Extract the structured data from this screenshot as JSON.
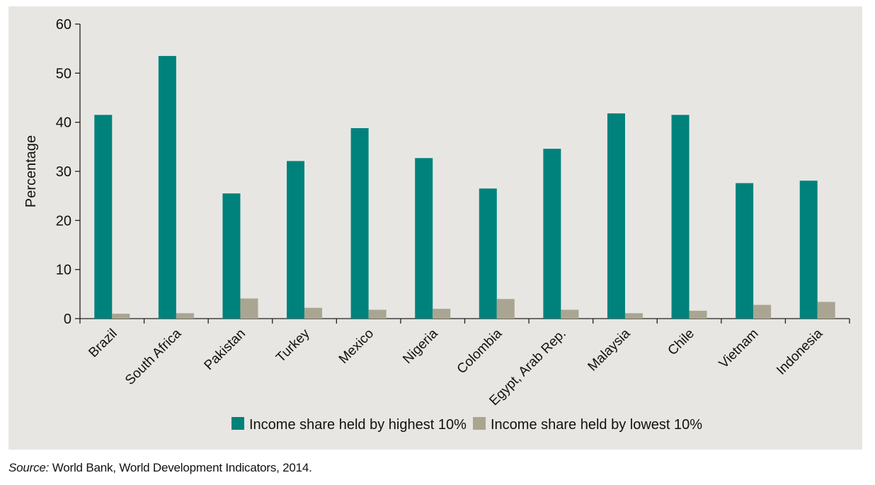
{
  "chart_data": {
    "type": "bar",
    "categories": [
      "Brazil",
      "South Africa",
      "Pakistan",
      "Turkey",
      "Mexico",
      "Nigeria",
      "Colombia",
      "Egypt, Arab Rep.",
      "Malaysia",
      "Chile",
      "Vietnam",
      "Indonesia"
    ],
    "series": [
      {
        "name": "Income share held by highest 10%",
        "color": "#00827c",
        "values": [
          41.5,
          53.5,
          25.5,
          32.1,
          38.8,
          32.7,
          26.5,
          34.6,
          41.8,
          41.5,
          27.6,
          28.1
        ]
      },
      {
        "name": "Income share held by lowest 10%",
        "color": "#a9a590",
        "values": [
          1.0,
          1.1,
          4.1,
          2.2,
          1.8,
          2.0,
          4.0,
          1.8,
          1.1,
          1.6,
          2.8,
          3.4
        ]
      }
    ],
    "ylabel": "Percentage",
    "ylim": [
      0,
      60
    ],
    "yticks": [
      "0",
      "10",
      "20",
      "30",
      "40",
      "50",
      "60"
    ],
    "grid": false,
    "legend_position": "bottom-center"
  },
  "source": {
    "label": "Source:",
    "text": " World Bank, World Development Indicators, 2014."
  }
}
